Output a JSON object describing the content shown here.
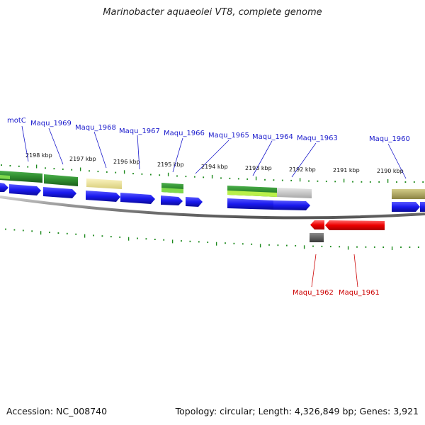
{
  "title": "Marinobacter aquaeolei VT8, complete genome",
  "footer": {
    "accession": "Accession: NC_008740",
    "summary": "Topology: circular; Length: 4,326,849 bp; Genes: 3,921"
  },
  "colors": {
    "forward_label": "#1a1acc",
    "reverse_label": "#cc0000",
    "cds_forward": "#1a1aee",
    "cds_reverse": "#ee0000",
    "feature_green": "#2e8b2e",
    "feature_lightgreen": "#7fd94c",
    "feature_yellow": "#efe59a",
    "feature_olive": "#b0a860",
    "feature_gray": "#bbbbbb",
    "tick": "#1d8a1d",
    "backbone": "#888888"
  },
  "tick_labels": [
    "2198 kbp",
    "2197 kbp",
    "2196 kbp",
    "2195 kbp",
    "2194 kbp",
    "2193 kbp",
    "2192 kbp",
    "2191 kbp",
    "2190 kbp"
  ],
  "forward_genes": [
    "motC",
    "Maqu_1969",
    "Maqu_1968",
    "Maqu_1967",
    "Maqu_1966",
    "Maqu_1965",
    "Maqu_1964",
    "Maqu_1963",
    "Maqu_1960"
  ],
  "reverse_genes": [
    "Maqu_1962",
    "Maqu_1961"
  ]
}
